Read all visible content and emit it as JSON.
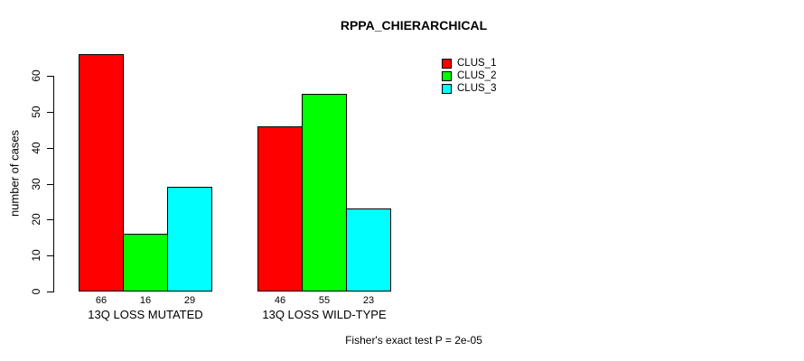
{
  "chart_data": {
    "type": "bar",
    "title": "RPPA_CHIERARCHICAL",
    "ylabel": "number of cases",
    "xlabel": "",
    "categories": [
      "13Q LOSS MUTATED",
      "13Q LOSS WILD-TYPE"
    ],
    "series": [
      {
        "name": "CLUS_1",
        "color": "#FF0000",
        "values": [
          66,
          46
        ]
      },
      {
        "name": "CLUS_2",
        "color": "#00FF00",
        "values": [
          16,
          55
        ]
      },
      {
        "name": "CLUS_3",
        "color": "#00FFFF",
        "values": [
          29,
          23
        ]
      }
    ],
    "value_labels": [
      [
        66,
        16,
        29
      ],
      [
        46,
        55,
        23
      ]
    ],
    "yticks": [
      0,
      10,
      20,
      30,
      40,
      50,
      60
    ],
    "ylim": [
      0,
      60
    ],
    "grid": false,
    "legend_position": "top-right",
    "annotation": "Fisher's exact test P = 2e-05",
    "background_color": "#FFFFFF",
    "axis_color": "#000000"
  }
}
